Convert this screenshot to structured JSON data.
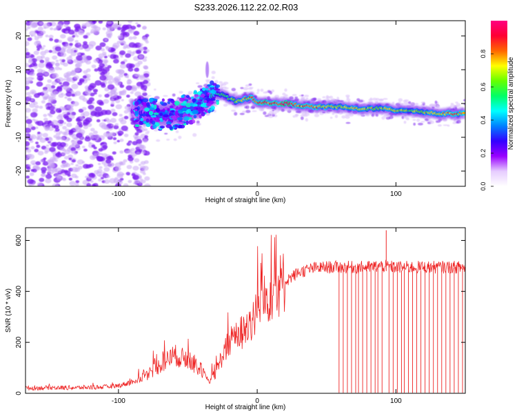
{
  "figure": {
    "title": "S233.2026.112.22.02.R03"
  },
  "chart_data": [
    {
      "type": "heatmap",
      "title": "",
      "xlabel": "Height of straight line (km)",
      "ylabel": "Frequency (Hz)",
      "xlim": [
        -167,
        150
      ],
      "ylim": [
        -24.5,
        24.5
      ],
      "xticks": [
        -100,
        0,
        100
      ],
      "yticks": [
        -20,
        -10,
        0,
        10,
        20
      ],
      "colorbar": {
        "label": "Normalized spectral amplitude",
        "range": [
          0,
          1
        ],
        "ticks": [
          "0.0",
          "0.2",
          "0.4",
          "0.6",
          "0.8"
        ],
        "tick_values": [
          0.0,
          0.2,
          0.4,
          0.6,
          0.8
        ],
        "colormap": [
          "#ffffff",
          "#e6ccff",
          "#9900ff",
          "#3300ff",
          "#0080ff",
          "#00ffff",
          "#00ff66",
          "#66ff00",
          "#ffff00",
          "#ff6600",
          "#ff0033",
          "#ff0080"
        ]
      },
      "ridge": {
        "x": [
          -90,
          -80,
          -70,
          -60,
          -50,
          -40,
          -35,
          -30,
          -25,
          -20,
          -15,
          -10,
          -5,
          0,
          10,
          20,
          30,
          40,
          50,
          60,
          70,
          80,
          90,
          100,
          110,
          120,
          130,
          140,
          150
        ],
        "freq": [
          -2.5,
          -3,
          -3.5,
          -3,
          -2,
          0,
          2,
          3,
          2.5,
          1.5,
          0.5,
          1,
          2,
          0.5,
          0,
          0,
          -0.5,
          -1,
          -1,
          -1,
          -1.5,
          -1.5,
          -1.5,
          -2,
          -2,
          -2.5,
          -3,
          -3,
          -3
        ],
        "amplitude": [
          0.2,
          0.3,
          0.35,
          0.35,
          0.35,
          0.4,
          0.45,
          0.5,
          0.55,
          0.6,
          0.7,
          0.75,
          0.8,
          0.85,
          0.9,
          0.95,
          0.85,
          0.8,
          0.75,
          0.7,
          0.75,
          0.7,
          0.7,
          0.7,
          0.65,
          0.7,
          0.75,
          0.8,
          0.75
        ]
      },
      "noise_region_x": [
        -167,
        -85
      ]
    },
    {
      "type": "line",
      "title": "",
      "xlabel": "Height of straight line (km)",
      "ylabel": "SNR (10 * v/v)",
      "xlim": [
        -167,
        150
      ],
      "ylim": [
        0,
        650
      ],
      "xticks": [
        -100,
        0,
        100
      ],
      "yticks": [
        0,
        200,
        400,
        600
      ],
      "series": [
        {
          "name": "SNR",
          "color": "#ee2222",
          "x": [
            -167,
            -150,
            -130,
            -110,
            -100,
            -90,
            -80,
            -70,
            -60,
            -50,
            -40,
            -35,
            -30,
            -25,
            -20,
            -15,
            -10,
            -5,
            0,
            5,
            10,
            15,
            20,
            30,
            40,
            50,
            60,
            70,
            80,
            90,
            100,
            110,
            120,
            130,
            140,
            150
          ],
          "y": [
            20,
            22,
            22,
            25,
            30,
            45,
            70,
            110,
            150,
            130,
            90,
            40,
            80,
            150,
            200,
            230,
            240,
            280,
            320,
            360,
            400,
            420,
            440,
            475,
            490,
            495,
            495,
            495,
            495,
            500,
            495,
            495,
            495,
            495,
            495,
            495
          ]
        }
      ],
      "dropouts_x": [
        59,
        62,
        65,
        68,
        71,
        73,
        76,
        79,
        82,
        85,
        87,
        90,
        95,
        98,
        101,
        104,
        106,
        109,
        112,
        115,
        118,
        121,
        124,
        127,
        130,
        133,
        136,
        139,
        142,
        145,
        148
      ],
      "spike": {
        "x": 93,
        "y": 640
      }
    }
  ]
}
